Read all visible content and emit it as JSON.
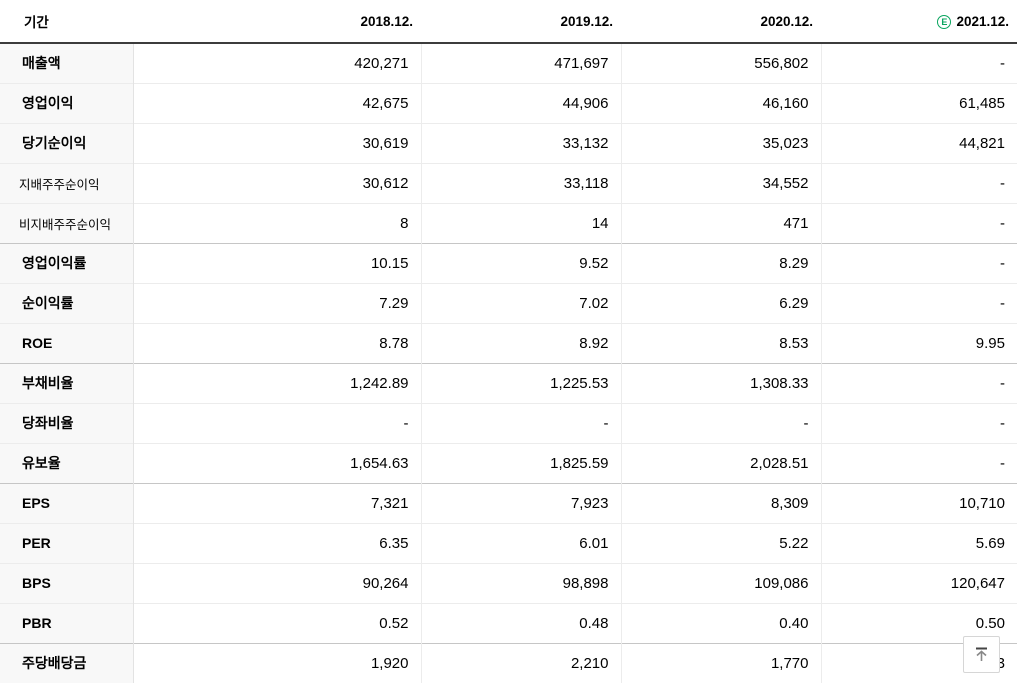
{
  "table": {
    "period_header": "기간",
    "columns": [
      {
        "label": "2018.12.",
        "estimate": false
      },
      {
        "label": "2019.12.",
        "estimate": false
      },
      {
        "label": "2020.12.",
        "estimate": false
      },
      {
        "label": "2021.12.",
        "estimate": true,
        "estimate_letter": "E"
      }
    ],
    "rows": [
      {
        "label": "매출액",
        "style": "main",
        "group_start": false,
        "values": [
          "420,271",
          "471,697",
          "556,802",
          "-"
        ]
      },
      {
        "label": "영업이익",
        "style": "main",
        "group_start": false,
        "values": [
          "42,675",
          "44,906",
          "46,160",
          "61,485"
        ]
      },
      {
        "label": "당기순이익",
        "style": "main",
        "group_start": false,
        "values": [
          "30,619",
          "33,132",
          "35,023",
          "44,821"
        ]
      },
      {
        "label": "지배주주순이익",
        "style": "sub",
        "group_start": false,
        "values": [
          "30,612",
          "33,118",
          "34,552",
          "-"
        ]
      },
      {
        "label": "비지배주주순이익",
        "style": "sub",
        "group_start": false,
        "values": [
          "8",
          "14",
          "471",
          "-"
        ]
      },
      {
        "label": "영업이익률",
        "style": "main",
        "group_start": true,
        "values": [
          "10.15",
          "9.52",
          "8.29",
          "-"
        ]
      },
      {
        "label": "순이익률",
        "style": "main",
        "group_start": false,
        "values": [
          "7.29",
          "7.02",
          "6.29",
          "-"
        ]
      },
      {
        "label": "ROE",
        "style": "main",
        "group_start": false,
        "values": [
          "8.78",
          "8.92",
          "8.53",
          "9.95"
        ]
      },
      {
        "label": "부채비율",
        "style": "main",
        "group_start": true,
        "values": [
          "1,242.89",
          "1,225.53",
          "1,308.33",
          "-"
        ]
      },
      {
        "label": "당좌비율",
        "style": "main",
        "group_start": false,
        "values": [
          "-",
          "-",
          "-",
          "-"
        ]
      },
      {
        "label": "유보율",
        "style": "main",
        "group_start": false,
        "values": [
          "1,654.63",
          "1,825.59",
          "2,028.51",
          "-"
        ]
      },
      {
        "label": "EPS",
        "style": "main",
        "group_start": true,
        "values": [
          "7,321",
          "7,923",
          "8,309",
          "10,710"
        ]
      },
      {
        "label": "PER",
        "style": "main",
        "group_start": false,
        "values": [
          "6.35",
          "6.01",
          "5.22",
          "5.69"
        ]
      },
      {
        "label": "BPS",
        "style": "main",
        "group_start": false,
        "values": [
          "90,264",
          "98,898",
          "109,086",
          "120,647"
        ]
      },
      {
        "label": "PBR",
        "style": "main",
        "group_start": false,
        "values": [
          "0.52",
          "0.48",
          "0.40",
          "0.50"
        ]
      },
      {
        "label": "주당배당금",
        "style": "main",
        "group_start": true,
        "values": [
          "1,920",
          "2,210",
          "1,770",
          "3"
        ]
      }
    ]
  },
  "scroll_top_button": {
    "icon": "arrow-up-to-top"
  },
  "colors": {
    "estimate_green": "#0aa55f",
    "header_border": "#3c3c3c",
    "group_border": "#c6c6c6",
    "row_border": "#ececec",
    "label_column_bg": "#f8f8f8",
    "button_border": "#d6d6d6",
    "icon_gray": "#666666"
  }
}
